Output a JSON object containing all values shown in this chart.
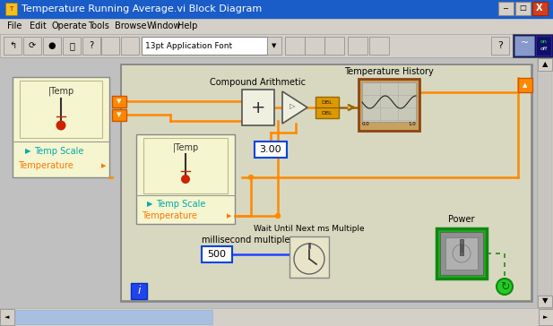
{
  "title": "Temperature Running Average.vi Block Diagram",
  "bg_win": "#d4d0c8",
  "bg_title": "#1a5cc8",
  "bg_diagram": "#ffffff",
  "bg_canvas": "#d8d8c0",
  "bg_subvi": "#f5f5d0",
  "wire_orange": "#ff8800",
  "wire_blue": "#2244ff",
  "wire_dashed": "#996600",
  "wire_green_dot": "#228822",
  "text_cyan": "#00aaaa",
  "text_orange": "#ff7700",
  "text_black": "#000000",
  "text_white": "#ffffff",
  "compound_label": "Compound Arithmetic",
  "temp_history_label": "Temperature History",
  "ms_label": "millisecond multiple",
  "wait_label": "Wait Until Next ms Multiple",
  "power_label": "Power",
  "temp_scale": "Temp Scale",
  "temperature": "Temperature",
  "val_300": "3.00",
  "val_500": "500",
  "menu_items": [
    "File",
    "Edit",
    "Operate",
    "Tools",
    "Browse",
    "Window",
    "Help"
  ]
}
